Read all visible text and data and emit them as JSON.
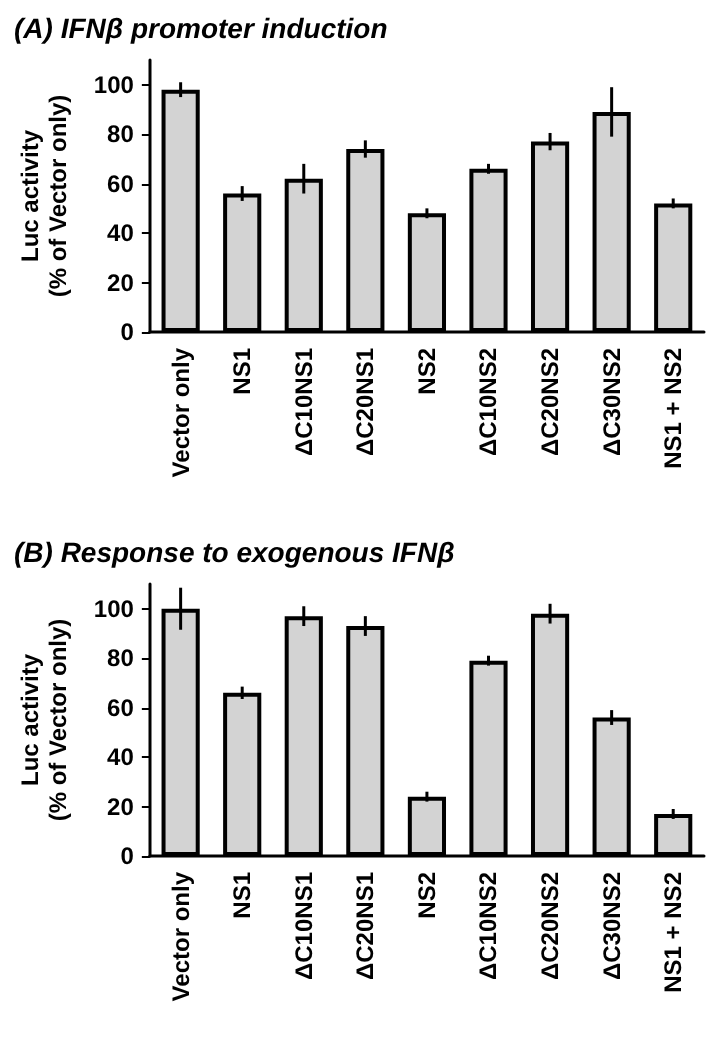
{
  "chart_data": [
    {
      "type": "bar",
      "title": "(A) IFNβ promoter induction",
      "ylabel": "Luc activity\n(% of Vector only)",
      "categories": [
        "Vector only",
        "NS1",
        "ΔC10NS1",
        "ΔC20NS1",
        "NS2",
        "ΔC10NS2",
        "ΔC20NS2",
        "ΔC30NS2",
        "NS1 + NS2"
      ],
      "values": [
        98,
        56,
        62,
        74,
        48,
        66,
        77,
        89,
        52
      ],
      "errors": [
        3,
        3,
        6,
        3.5,
        2,
        2,
        3.5,
        10,
        2
      ],
      "color": "#d3d3d3",
      "ylim": [
        0,
        110
      ],
      "yticks": [
        0,
        20,
        40,
        60,
        80,
        100
      ]
    },
    {
      "type": "bar",
      "title": "(B) Response to exogenous IFNβ",
      "ylabel": "Luc activity\n(% of Vector only)",
      "categories": [
        "Vector only",
        "NS1",
        "ΔC10NS1",
        "ΔC20NS1",
        "NS2",
        "ΔC10NS2",
        "ΔC20NS2",
        "ΔC30NS2",
        "NS1 + NS2"
      ],
      "values": [
        100,
        66,
        97,
        93,
        24,
        79,
        98,
        56,
        17
      ],
      "errors": [
        8.5,
        2.5,
        4,
        4,
        2,
        2,
        4,
        3,
        2
      ],
      "color": "#d3d3d3",
      "ylim": [
        0,
        110
      ],
      "yticks": [
        0,
        20,
        40,
        60,
        80,
        100
      ]
    }
  ]
}
